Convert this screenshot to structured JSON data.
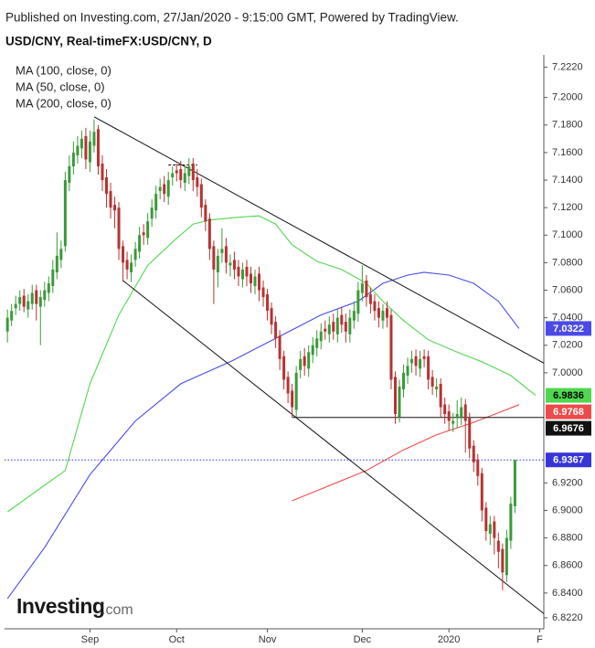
{
  "chart_data": {
    "type": "candlestick",
    "subtitle": "Published on Investing.com, 27/Jan/2020 - 9:15:00 GMT, Powered by TradingView.",
    "title": "USD/CNY, Real-timeFX:USD/CNY, D",
    "logo": {
      "name": "Investing",
      "suffix": ".com"
    },
    "up_color": "#3a9a3a",
    "down_color": "#b83232",
    "last_price_color": "#3535d8",
    "open": [
      7.03,
      7.038,
      7.047,
      7.05,
      7.056,
      7.046,
      7.05,
      7.06,
      7.048,
      7.053,
      7.058,
      7.063,
      7.073,
      7.082,
      7.092,
      7.138,
      7.15,
      7.158,
      7.163,
      7.172,
      7.153,
      7.165,
      7.177,
      7.152,
      7.142,
      7.132,
      7.122,
      7.12,
      7.092,
      7.082,
      7.073,
      7.082,
      7.088,
      7.102,
      7.098,
      7.112,
      7.118,
      7.132,
      7.137,
      7.128,
      7.142,
      7.147,
      7.148,
      7.138,
      7.143,
      7.152,
      7.142,
      7.137,
      7.122,
      7.112,
      7.092,
      7.073,
      7.087,
      7.092,
      7.078,
      7.082,
      7.077,
      7.068,
      7.077,
      7.072,
      7.063,
      7.072,
      7.062,
      7.057,
      7.047,
      7.037,
      7.027,
      7.012,
      6.997,
      6.987,
      6.973,
      7.002,
      7.012,
      7.003,
      7.013,
      7.018,
      7.023,
      7.032,
      7.028,
      7.037,
      7.028,
      7.042,
      7.037,
      7.028,
      7.038,
      7.043,
      7.058,
      7.067,
      7.057,
      7.052,
      7.047,
      7.038,
      7.047,
      7.042,
      6.997,
      6.968,
      6.988,
      6.998,
      7.007,
      7.012,
      7.003,
      7.012,
      7.012,
      6.997,
      6.988,
      6.992,
      6.977,
      6.972,
      6.963,
      6.967,
      6.968,
      6.977,
      6.967,
      6.947,
      6.937,
      6.927,
      6.902,
      6.883,
      6.892,
      6.878,
      6.872,
      6.853,
      6.878,
      6.903
    ],
    "high": [
      7.046,
      7.05,
      7.056,
      7.06,
      7.061,
      7.057,
      7.064,
      7.064,
      7.06,
      7.066,
      7.07,
      7.082,
      7.102,
      7.096,
      7.146,
      7.158,
      7.168,
      7.172,
      7.176,
      7.178,
      7.176,
      7.184,
      7.18,
      7.158,
      7.148,
      7.138,
      7.128,
      7.124,
      7.096,
      7.088,
      7.086,
      7.095,
      7.106,
      7.108,
      7.116,
      7.126,
      7.136,
      7.141,
      7.143,
      7.146,
      7.15,
      7.152,
      7.154,
      7.15,
      7.156,
      7.156,
      7.148,
      7.141,
      7.126,
      7.116,
      7.096,
      7.09,
      7.105,
      7.098,
      7.086,
      7.088,
      7.082,
      7.08,
      7.082,
      7.077,
      7.075,
      7.077,
      7.067,
      7.061,
      7.051,
      7.041,
      7.031,
      7.016,
      7.001,
      6.992,
      7.005,
      7.016,
      7.018,
      7.02,
      7.026,
      7.031,
      7.036,
      7.038,
      7.041,
      7.043,
      7.046,
      7.048,
      7.043,
      7.046,
      7.052,
      7.066,
      7.078,
      7.071,
      7.062,
      7.057,
      7.052,
      7.05,
      7.052,
      7.046,
      7.001,
      6.995,
      7.006,
      7.011,
      7.016,
      7.017,
      7.016,
      7.017,
      7.016,
      7.002,
      6.996,
      6.996,
      6.982,
      6.977,
      6.971,
      6.98,
      6.982,
      6.981,
      6.971,
      6.951,
      6.941,
      6.931,
      6.906,
      6.896,
      6.896,
      6.884,
      6.876,
      6.886,
      6.91,
      6.9367
    ],
    "low": [
      7.022,
      7.034,
      7.042,
      7.045,
      7.044,
      7.04,
      7.046,
      7.038,
      7.02,
      7.048,
      7.052,
      7.058,
      7.068,
      7.076,
      7.088,
      7.132,
      7.144,
      7.152,
      7.156,
      7.148,
      7.146,
      7.16,
      7.144,
      7.132,
      7.12,
      7.112,
      7.105,
      7.082,
      7.066,
      7.068,
      7.066,
      7.077,
      7.083,
      7.093,
      7.093,
      7.106,
      7.112,
      7.126,
      7.124,
      7.122,
      7.136,
      7.139,
      7.134,
      7.132,
      7.137,
      7.132,
      7.128,
      7.113,
      7.103,
      7.082,
      7.05,
      7.062,
      7.08,
      7.072,
      7.07,
      7.068,
      7.063,
      7.062,
      7.063,
      7.058,
      7.057,
      7.052,
      7.048,
      7.038,
      7.028,
      7.018,
      7.002,
      6.988,
      6.978,
      6.968,
      6.968,
      6.996,
      6.998,
      6.997,
      7.007,
      7.012,
      7.017,
      7.024,
      7.022,
      7.024,
      7.022,
      7.029,
      7.022,
      7.022,
      7.032,
      7.037,
      7.052,
      7.048,
      7.043,
      7.038,
      7.033,
      7.032,
      7.033,
      6.988,
      6.963,
      6.964,
      6.982,
      6.992,
      7.0,
      6.998,
      6.997,
      7.004,
      6.988,
      6.984,
      6.982,
      6.968,
      6.963,
      6.958,
      6.957,
      6.96,
      6.962,
      6.942,
      6.938,
      6.928,
      6.918,
      6.892,
      6.878,
      6.875,
      6.868,
      6.858,
      6.842,
      6.848,
      6.872,
      6.898
    ],
    "close": [
      7.04,
      7.045,
      7.05,
      7.055,
      7.048,
      7.052,
      7.058,
      7.05,
      7.055,
      7.06,
      7.065,
      7.075,
      7.085,
      7.09,
      7.14,
      7.15,
      7.16,
      7.165,
      7.17,
      7.155,
      7.168,
      7.175,
      7.15,
      7.14,
      7.13,
      7.12,
      7.118,
      7.09,
      7.08,
      7.075,
      7.08,
      7.09,
      7.1,
      7.1,
      7.11,
      7.12,
      7.13,
      7.135,
      7.13,
      7.14,
      7.145,
      7.145,
      7.14,
      7.145,
      7.15,
      7.14,
      7.135,
      7.12,
      7.11,
      7.09,
      7.075,
      7.085,
      7.09,
      7.08,
      7.08,
      7.075,
      7.07,
      7.075,
      7.07,
      7.065,
      7.07,
      7.06,
      7.055,
      7.045,
      7.035,
      7.025,
      7.01,
      6.995,
      6.985,
      6.975,
      7.0,
      7.01,
      7.005,
      7.015,
      7.02,
      7.025,
      7.03,
      7.03,
      7.035,
      7.03,
      7.04,
      7.035,
      7.03,
      7.04,
      7.045,
      7.06,
      7.065,
      7.055,
      7.05,
      7.045,
      7.04,
      7.045,
      7.04,
      6.995,
      6.97,
      6.99,
      7.0,
      7.005,
      7.01,
      7.005,
      7.01,
      7.01,
      6.995,
      6.99,
      6.99,
      6.975,
      6.97,
      6.965,
      6.965,
      6.97,
      6.975,
      6.965,
      6.945,
      6.935,
      6.925,
      6.9,
      6.885,
      6.89,
      6.88,
      6.87,
      6.855,
      6.88,
      6.905,
      6.9367
    ],
    "overlays": [
      {
        "name": "MA (100, close, 0)",
        "color": "#4a4ae8",
        "x": [
          0,
          9,
          20,
          31,
          42,
          54,
          65,
          76,
          85,
          91,
          97,
          101,
          107,
          113,
          119,
          124
        ],
        "values": [
          6.836,
          6.873,
          6.926,
          6.965,
          6.992,
          7.008,
          7.025,
          7.042,
          7.052,
          7.065,
          7.071,
          7.073,
          7.071,
          7.065,
          7.052,
          7.0322
        ]
      },
      {
        "name": "MA (50, close, 0)",
        "color": "#4fd84f",
        "x": [
          0,
          14,
          20,
          27,
          34,
          40,
          45,
          49,
          56,
          61,
          65,
          69,
          75,
          81,
          87,
          91,
          96,
          102,
          109,
          115,
          122,
          128
        ],
        "values": [
          6.899,
          6.929,
          6.992,
          7.042,
          7.078,
          7.095,
          7.108,
          7.111,
          7.113,
          7.114,
          7.108,
          7.093,
          7.081,
          7.075,
          7.065,
          7.052,
          7.038,
          7.024,
          7.015,
          7.008,
          6.998,
          6.9836
        ]
      },
      {
        "name": "MA (200, close, 0)",
        "color": "#ee4a4a",
        "x": [
          69,
          78,
          87,
          96,
          104,
          113,
          119,
          124
        ],
        "values": [
          6.907,
          6.918,
          6.929,
          6.944,
          6.955,
          6.964,
          6.971,
          6.9768
        ]
      }
    ],
    "trendlines": [
      {
        "x": [
          21,
          130
        ],
        "values": [
          7.186,
          7.007
        ],
        "color": "#111111",
        "dashed": false
      },
      {
        "x": [
          28,
          130
        ],
        "values": [
          7.067,
          6.825
        ],
        "color": "#111111",
        "dashed": false
      },
      {
        "x": [
          69,
          130
        ],
        "values": [
          6.9676,
          6.9676
        ],
        "color": "#111111",
        "dashed": false
      },
      {
        "x": [
          39,
          46
        ],
        "values": [
          7.151,
          7.151
        ],
        "color": "#111111",
        "dashed": true
      }
    ],
    "xlim": [
      -0.7,
      130
    ],
    "xticks": [
      {
        "value": 20,
        "label": "Sep"
      },
      {
        "value": 41,
        "label": "Oct"
      },
      {
        "value": 63,
        "label": "Nov"
      },
      {
        "value": 86,
        "label": "Dec"
      },
      {
        "value": 107,
        "label": "2020"
      },
      {
        "value": 129,
        "label": "F"
      }
    ],
    "ylim": [
      6.814,
      7.231
    ],
    "yticks": [
      {
        "value": 7.222,
        "label": "7.2220"
      },
      {
        "value": 7.2,
        "label": "7.2000"
      },
      {
        "value": 7.18,
        "label": "7.1800"
      },
      {
        "value": 7.16,
        "label": "7.1600"
      },
      {
        "value": 7.14,
        "label": "7.1400"
      },
      {
        "value": 7.12,
        "label": "7.1200"
      },
      {
        "value": 7.1,
        "label": "7.1000"
      },
      {
        "value": 7.08,
        "label": "7.0800"
      },
      {
        "value": 7.06,
        "label": "7.0600"
      },
      {
        "value": 7.04,
        "label": "7.0400"
      },
      {
        "value": 7.02,
        "label": "7.0200"
      },
      {
        "value": 7,
        "label": "7.0000"
      },
      {
        "value": 6.92,
        "label": "6.9200"
      },
      {
        "value": 6.9,
        "label": "6.9000"
      },
      {
        "value": 6.88,
        "label": "6.8800"
      },
      {
        "value": 6.86,
        "label": "6.8600"
      },
      {
        "value": 6.84,
        "label": "6.8400"
      },
      {
        "value": 6.822,
        "label": "6.8220"
      }
    ],
    "tags": [
      {
        "source": "chart_data.overlays.0.values.15",
        "text_color": "#ffffff"
      },
      {
        "source": "chart_data.overlays.1.values.21",
        "text_color": "#000000"
      },
      {
        "source": "chart_data.overlays.2.values.7",
        "text_color": "#ffffff"
      },
      {
        "source": "chart_data.trendlines.2.values.1",
        "text_color": "#ffffff"
      },
      {
        "source": "chart_data.close.123",
        "text_color": "#ffffff"
      }
    ]
  }
}
